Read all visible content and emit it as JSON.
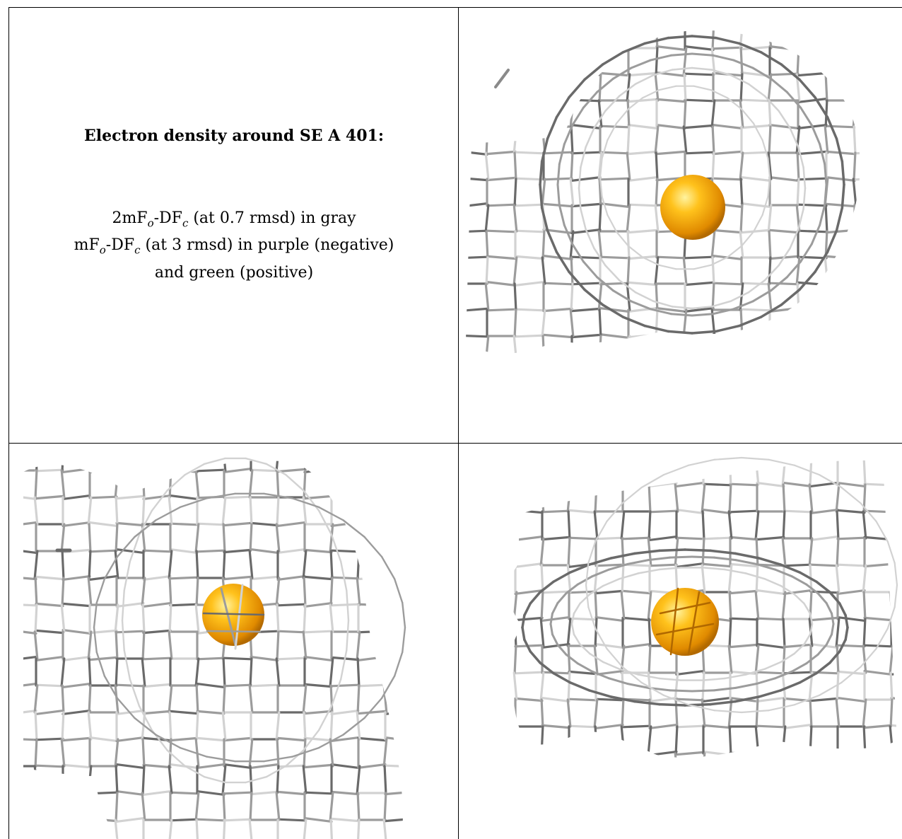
{
  "caption": {
    "title": "Electron density around SE A 401:",
    "line1": {
      "pre": "2mF",
      "sub1": "o",
      "mid": "-DF",
      "sub2": "c",
      "post": " (at 0.7 rmsd) in gray"
    },
    "line2": {
      "pre": "mF",
      "sub1": "o",
      "mid": "-DF",
      "sub2": "c",
      "post": " (at 3 rmsd) in purple (negative)"
    },
    "line3": "and green (positive)"
  },
  "colors": {
    "mesh_dark": "#6a6a6a",
    "mesh_mid": "#9c9c9c",
    "mesh_light": "#d2d2d2",
    "atom": "#f5a400",
    "atom_highlight": "#ffe066",
    "border": "#000000"
  },
  "panels": [
    {
      "name": "view-1",
      "atom": "SE",
      "icon": "selenium-atom-sphere-icon"
    },
    {
      "name": "view-2",
      "atom": "SE",
      "icon": "selenium-atom-sphere-icon"
    },
    {
      "name": "view-3",
      "atom": "SE",
      "icon": "selenium-atom-sphere-icon"
    }
  ]
}
